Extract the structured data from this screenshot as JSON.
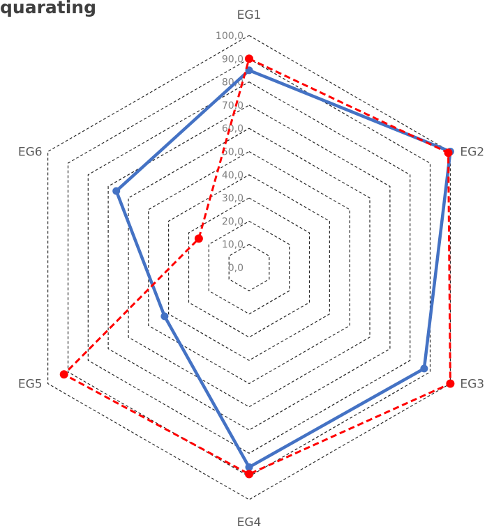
{
  "chart_data": {
    "type": "radar",
    "title": "quarating",
    "categories": [
      "EG1",
      "EG2",
      "EG3",
      "EG4",
      "EG5",
      "EG6"
    ],
    "rmin": 0,
    "rmax": 100,
    "tick_step": 10,
    "tick_labels": [
      "0,0",
      "10,0",
      "20,0",
      "30,0",
      "40,0",
      "50,0",
      "60,0",
      "70,0",
      "80,0",
      "90,0",
      "100,0"
    ],
    "grid": true,
    "series": [
      {
        "values": [
          85,
          100,
          87,
          86,
          42,
          66
        ],
        "color": "#4472c4",
        "line": "solid"
      },
      {
        "values": [
          90,
          99,
          100,
          89,
          92,
          25
        ],
        "color": "#ff0000",
        "line": "dashed"
      }
    ]
  }
}
